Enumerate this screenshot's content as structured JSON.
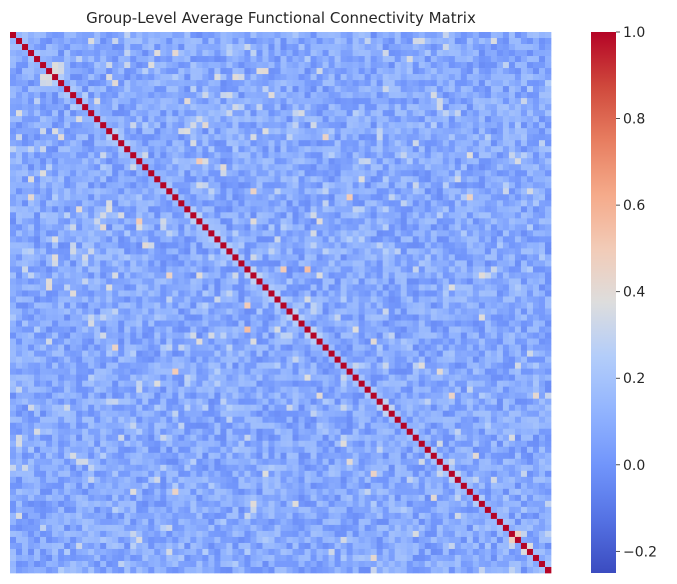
{
  "chart_data": {
    "type": "heatmap",
    "title": "Group-Level Average Functional Connectivity Matrix",
    "xlabel": "",
    "ylabel": "",
    "n_regions": 90,
    "matrix_encoding": "symmetric correlation matrix; diagonal = 1.0; off-diagonal values mostly between -0.2 and 0.6",
    "diagonal_value": 1.0,
    "value_range_observed": [
      -0.25,
      0.6
    ],
    "notable_strong_pairs": [
      {
        "i": 26,
        "j": 40,
        "value": 0.45
      },
      {
        "i": 26,
        "j": 26,
        "value": 1.0
      },
      {
        "i": 31,
        "j": 21,
        "value": 0.5
      },
      {
        "i": 35,
        "j": 22,
        "value": 0.4
      },
      {
        "i": 39,
        "j": 49,
        "value": 0.55
      },
      {
        "i": 51,
        "j": 60,
        "value": 0.4
      },
      {
        "i": 45,
        "j": 39,
        "value": 0.5
      },
      {
        "i": 56,
        "j": 27,
        "value": 0.5
      },
      {
        "i": 60,
        "j": 73,
        "value": 0.45
      },
      {
        "i": 71,
        "j": 56,
        "value": 0.4
      },
      {
        "i": 76,
        "j": 27,
        "value": 0.45
      },
      {
        "i": 17,
        "j": 52,
        "value": 0.45
      },
      {
        "i": 8,
        "j": 17,
        "value": 0.4
      },
      {
        "i": 11,
        "j": 29,
        "value": 0.4
      },
      {
        "i": 6,
        "j": 42,
        "value": 0.4
      }
    ],
    "colorbar": {
      "colormap": "coolwarm",
      "vmin": -0.25,
      "vmax": 1.0,
      "ticks": [
        1.0,
        0.8,
        0.6,
        0.4,
        0.2,
        0.0,
        -0.2
      ],
      "tick_labels": [
        "1.0",
        "0.8",
        "0.6",
        "0.4",
        "0.2",
        "0.0",
        "−0.2"
      ]
    },
    "axis_ticks_shown": false,
    "grid": false
  }
}
